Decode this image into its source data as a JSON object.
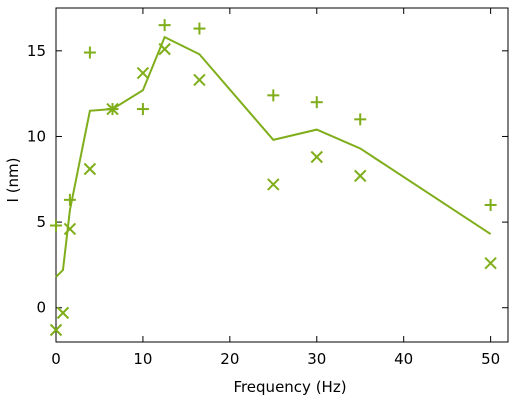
{
  "chart_data": {
    "type": "line",
    "title": "",
    "xlabel": "Frequency (Hz)",
    "ylabel": "I (nm)",
    "xlim": [
      0,
      52
    ],
    "ylim": [
      -2,
      17.5
    ],
    "xticks": [
      0,
      10,
      20,
      30,
      40,
      50
    ],
    "yticks": [
      0,
      5,
      10,
      15
    ],
    "grid": false,
    "legend": "none",
    "color": "#7fae1a",
    "series": [
      {
        "type": "line",
        "x": [
          0,
          0.8,
          1.6,
          3.9,
          6.5,
          10,
          12.5,
          16.5,
          25,
          30,
          35,
          50
        ],
        "values": [
          1.8,
          2.2,
          5.7,
          11.5,
          11.6,
          12.7,
          15.8,
          14.8,
          9.8,
          10.4,
          9.3,
          4.3
        ]
      },
      {
        "type": "scatter",
        "marker": "plus",
        "x": [
          0,
          1.6,
          3.9,
          6.5,
          10,
          12.5,
          16.5,
          25,
          30,
          35,
          50
        ],
        "values": [
          4.8,
          6.3,
          14.9,
          11.6,
          11.6,
          16.5,
          16.3,
          12.4,
          12.0,
          11.0,
          6.0
        ]
      },
      {
        "type": "scatter",
        "marker": "cross",
        "x": [
          0,
          0.8,
          1.6,
          3.9,
          6.5,
          10,
          12.5,
          16.5,
          25,
          30,
          35,
          50
        ],
        "values": [
          -1.3,
          -0.3,
          4.6,
          8.1,
          11.6,
          13.7,
          15.1,
          13.3,
          7.2,
          8.8,
          7.7,
          2.6
        ]
      }
    ]
  }
}
